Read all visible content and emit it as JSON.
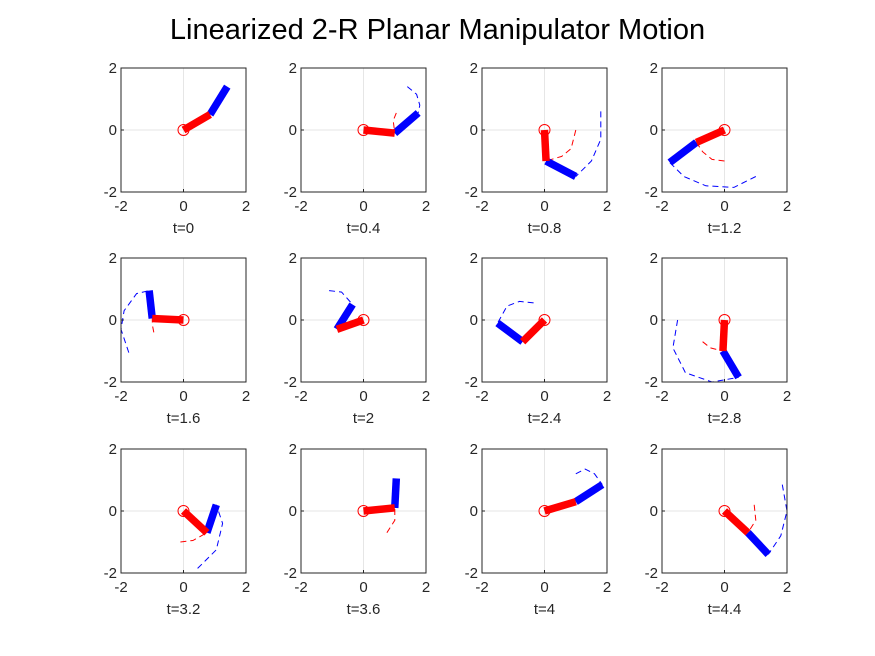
{
  "title": "Linearized 2-R Planar Manipulator Motion",
  "colors": {
    "link1": "#ff0000",
    "link2": "#0000ff",
    "grid": "#e6e6e6",
    "axes": "#262626",
    "text": "#262626"
  },
  "chart_data": {
    "type": "line",
    "title": "Linearized 2-R Planar Manipulator Motion",
    "grid": true,
    "axes": {
      "xlim": [
        -2,
        2
      ],
      "ylim": [
        -2,
        2
      ],
      "xticks": [
        -2,
        0,
        2
      ],
      "yticks": [
        -2,
        0,
        2
      ]
    },
    "series_legend": [
      {
        "name": "",
        "color": "#ff0000",
        "style": "thick solid (link 1)"
      },
      {
        "name": "",
        "color": "#0000ff",
        "style": "thick solid (link 2)"
      },
      {
        "name": "",
        "color": "#ff0000",
        "style": "dashed trace (elbow path)"
      },
      {
        "name": "",
        "color": "#0000ff",
        "style": "dashed trace (tip path)"
      }
    ],
    "frames": [
      {
        "label": "t=0",
        "elbow": [
          0.85,
          0.5
        ],
        "tip": [
          1.4,
          1.4
        ],
        "elbow_trace": [],
        "tip_trace": []
      },
      {
        "label": "t=0.4",
        "elbow": [
          1.0,
          -0.1
        ],
        "tip": [
          1.75,
          0.55
        ],
        "elbow_trace": [
          [
            1.05,
            0.55
          ],
          [
            0.95,
            0.3
          ],
          [
            1.0,
            -0.1
          ]
        ],
        "tip_trace": [
          [
            1.4,
            1.4
          ],
          [
            1.7,
            1.15
          ],
          [
            1.8,
            0.8
          ],
          [
            1.75,
            0.55
          ]
        ]
      },
      {
        "label": "t=0.8",
        "elbow": [
          0.05,
          -1.0
        ],
        "tip": [
          1.0,
          -1.5
        ],
        "elbow_trace": [
          [
            1.0,
            0.0
          ],
          [
            0.85,
            -0.6
          ],
          [
            0.55,
            -0.85
          ],
          [
            0.05,
            -1.0
          ]
        ],
        "tip_trace": [
          [
            1.8,
            0.6
          ],
          [
            1.8,
            -0.3
          ],
          [
            1.5,
            -1.0
          ],
          [
            1.0,
            -1.5
          ]
        ]
      },
      {
        "label": "t=1.2",
        "elbow": [
          -0.9,
          -0.4
        ],
        "tip": [
          -1.75,
          -1.05
        ],
        "elbow_trace": [
          [
            0.0,
            -1.0
          ],
          [
            -0.4,
            -0.95
          ],
          [
            -0.7,
            -0.7
          ],
          [
            -0.9,
            -0.4
          ]
        ],
        "tip_trace": [
          [
            1.0,
            -1.5
          ],
          [
            0.3,
            -1.85
          ],
          [
            -0.6,
            -1.8
          ],
          [
            -1.3,
            -1.5
          ],
          [
            -1.75,
            -1.05
          ]
        ]
      },
      {
        "label": "t=1.6",
        "elbow": [
          -1.0,
          0.05
        ],
        "tip": [
          -1.1,
          0.95
        ],
        "elbow_trace": [
          [
            -0.95,
            -0.4
          ],
          [
            -1.0,
            -0.15
          ],
          [
            -1.0,
            0.05
          ]
        ],
        "tip_trace": [
          [
            -1.75,
            -1.05
          ],
          [
            -2.0,
            -0.3
          ],
          [
            -1.9,
            0.3
          ],
          [
            -1.5,
            0.85
          ],
          [
            -1.1,
            0.95
          ]
        ]
      },
      {
        "label": "t=2",
        "elbow": [
          -0.85,
          -0.3
        ],
        "tip": [
          -0.35,
          0.5
        ],
        "elbow_trace": [],
        "tip_trace": [
          [
            -1.1,
            0.95
          ],
          [
            -0.7,
            0.9
          ],
          [
            -0.35,
            0.5
          ]
        ]
      },
      {
        "label": "t=2.4",
        "elbow": [
          -0.7,
          -0.7
        ],
        "tip": [
          -1.5,
          -0.1
        ],
        "elbow_trace": [],
        "tip_trace": [
          [
            -0.35,
            0.55
          ],
          [
            -0.8,
            0.6
          ],
          [
            -1.2,
            0.45
          ],
          [
            -1.5,
            -0.1
          ]
        ]
      },
      {
        "label": "t=2.8",
        "elbow": [
          -0.05,
          -1.0
        ],
        "tip": [
          0.45,
          -1.85
        ],
        "elbow_trace": [
          [
            -0.7,
            -0.7
          ],
          [
            -0.45,
            -0.9
          ],
          [
            -0.05,
            -1.0
          ]
        ],
        "tip_trace": [
          [
            -1.5,
            0.0
          ],
          [
            -1.65,
            -0.9
          ],
          [
            -1.25,
            -1.7
          ],
          [
            -0.4,
            -2.0
          ],
          [
            0.45,
            -1.85
          ]
        ]
      },
      {
        "label": "t=3.2",
        "elbow": [
          0.75,
          -0.7
        ],
        "tip": [
          1.05,
          0.2
        ],
        "elbow_trace": [
          [
            -0.1,
            -1.0
          ],
          [
            0.3,
            -0.95
          ],
          [
            0.75,
            -0.7
          ]
        ],
        "tip_trace": [
          [
            0.45,
            -1.85
          ],
          [
            1.05,
            -1.25
          ],
          [
            1.25,
            -0.4
          ],
          [
            1.05,
            0.2
          ]
        ]
      },
      {
        "label": "t=3.6",
        "elbow": [
          1.0,
          0.1
        ],
        "tip": [
          1.05,
          1.05
        ],
        "elbow_trace": [
          [
            0.75,
            -0.7
          ],
          [
            1.0,
            -0.3
          ],
          [
            1.0,
            0.1
          ]
        ],
        "tip_trace": []
      },
      {
        "label": "t=4",
        "elbow": [
          1.0,
          0.3
        ],
        "tip": [
          1.85,
          0.85
        ],
        "elbow_trace": [],
        "tip_trace": [
          [
            1.0,
            1.2
          ],
          [
            1.3,
            1.35
          ],
          [
            1.6,
            1.2
          ],
          [
            1.85,
            0.85
          ]
        ]
      },
      {
        "label": "t=4.4",
        "elbow": [
          0.75,
          -0.7
        ],
        "tip": [
          1.4,
          -1.4
        ],
        "elbow_trace": [
          [
            0.95,
            0.2
          ],
          [
            1.0,
            -0.3
          ],
          [
            0.75,
            -0.7
          ]
        ],
        "tip_trace": [
          [
            1.85,
            0.85
          ],
          [
            2.0,
            0.0
          ],
          [
            1.8,
            -0.8
          ],
          [
            1.4,
            -1.4
          ]
        ]
      }
    ]
  }
}
